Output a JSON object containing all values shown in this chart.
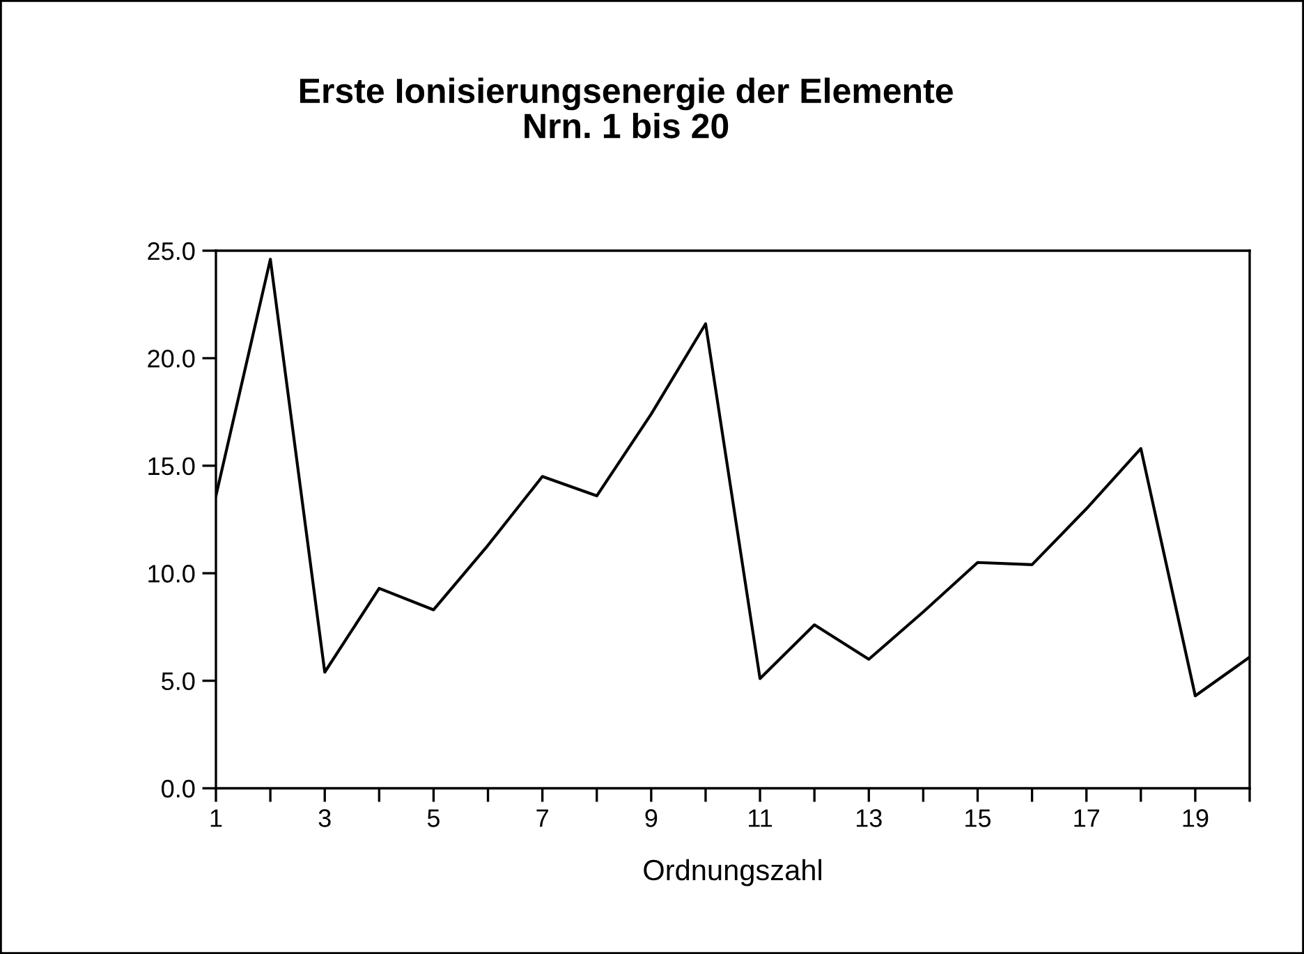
{
  "chart_data": {
    "type": "line",
    "title": "Erste Ionisierungsenergie der Elemente\nNrn. 1 bis 20",
    "xlabel": "Ordnungszahl",
    "x": [
      1,
      2,
      3,
      4,
      5,
      6,
      7,
      8,
      9,
      10,
      11,
      12,
      13,
      14,
      15,
      16,
      17,
      18,
      19,
      20
    ],
    "series": [
      {
        "color": "#000000",
        "values": [
          13.6,
          24.6,
          5.4,
          9.3,
          8.3,
          11.3,
          14.5,
          13.6,
          17.4,
          21.6,
          5.1,
          7.6,
          6.0,
          8.2,
          10.5,
          10.4,
          13.0,
          15.8,
          4.3,
          6.1
        ]
      }
    ],
    "xlim": [
      1,
      20
    ],
    "xticks": [
      1,
      {
        "value": 2,
        "label": null
      },
      3,
      {
        "value": 4,
        "label": null
      },
      5,
      {
        "value": 6,
        "label": null
      },
      7,
      {
        "value": 8,
        "label": null
      },
      9,
      {
        "value": 10,
        "label": null
      },
      11,
      {
        "value": 12,
        "label": null
      },
      13,
      {
        "value": 14,
        "label": null
      },
      15,
      {
        "value": 16,
        "label": null
      },
      17,
      {
        "value": 18,
        "label": null
      },
      19,
      {
        "value": 20,
        "label": null
      }
    ],
    "ylim": [
      0,
      25
    ],
    "yticks": [
      {
        "value": 0,
        "label": "0.0"
      },
      {
        "value": 5,
        "label": "5.0"
      },
      {
        "value": 10,
        "label": "10.0"
      },
      {
        "value": 15,
        "label": "15.0"
      },
      {
        "value": 20,
        "label": "20.0"
      },
      {
        "value": 25,
        "label": "25.0"
      }
    ],
    "grid": false,
    "legend": false,
    "marker": "none",
    "line_style": "solid"
  }
}
